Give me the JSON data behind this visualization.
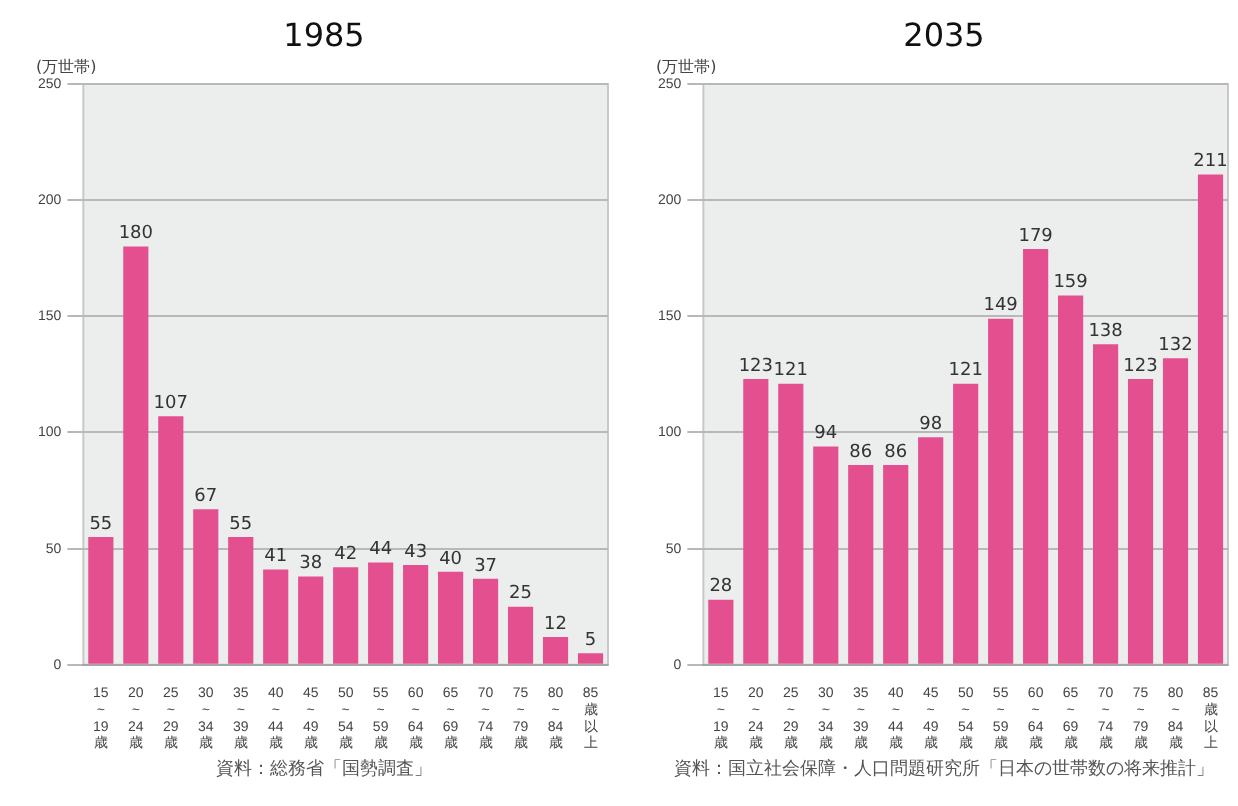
{
  "chart_data": [
    {
      "type": "bar",
      "title": "1985",
      "ylabel": "(万世帯)",
      "categories": [
        "15~19歳",
        "20~24歳",
        "25~29歳",
        "30~34歳",
        "35~39歳",
        "40~44歳",
        "45~49歳",
        "50~54歳",
        "55~59歳",
        "60~64歳",
        "65~69歳",
        "70~74歳",
        "75~79歳",
        "80~84歳",
        "85歳以上"
      ],
      "values": [
        55,
        180,
        107,
        67,
        55,
        41,
        38,
        42,
        44,
        43,
        40,
        37,
        25,
        12,
        5
      ],
      "color": "#e4508f",
      "ylim": [
        0,
        250
      ],
      "yticks": [
        0,
        50,
        100,
        150,
        200,
        250
      ],
      "grid": "y",
      "data_labels": true,
      "annotations": [
        "資料：総務省「国勢調査」"
      ]
    },
    {
      "type": "bar",
      "title": "2035",
      "ylabel": "(万世帯)",
      "categories": [
        "15~19歳",
        "20~24歳",
        "25~29歳",
        "30~34歳",
        "35~39歳",
        "40~44歳",
        "45~49歳",
        "50~54歳",
        "55~59歳",
        "60~64歳",
        "65~69歳",
        "70~74歳",
        "75~79歳",
        "80~84歳",
        "85歳以上"
      ],
      "values": [
        28,
        123,
        121,
        94,
        86,
        86,
        98,
        121,
        149,
        179,
        159,
        138,
        123,
        132,
        211
      ],
      "color": "#e4508f",
      "ylim": [
        0,
        250
      ],
      "yticks": [
        0,
        50,
        100,
        150,
        200,
        250
      ],
      "grid": "y",
      "data_labels": true,
      "annotations": [
        "資料：国立社会保障・人口問題研究所「日本の世帯数の将来推計」"
      ]
    }
  ]
}
